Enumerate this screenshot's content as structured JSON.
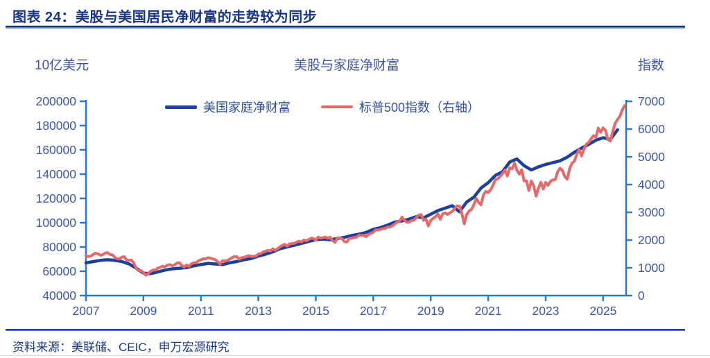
{
  "header": {
    "title": "图表 24：美股与美国居民净财富的走势较为同步"
  },
  "footer": {
    "source": "资料来源：美联储、CEIC，申万宏源研究"
  },
  "colors": {
    "title_navy": "#17348c",
    "tick_text": "#3c55a8",
    "axis_line": "#2e79cc",
    "networth_line": "#203f9b",
    "sp500_line": "#e46a6a"
  },
  "chart_data": {
    "type": "line",
    "title": "美股与家庭净财富",
    "legend_position": "top-center",
    "grid": false,
    "left_axis": {
      "label": "10亿美元",
      "min": 40000,
      "max": 200000,
      "tick_step": 20000,
      "ticks": [
        40000,
        60000,
        80000,
        100000,
        120000,
        140000,
        160000,
        180000,
        200000
      ]
    },
    "right_axis": {
      "label": "指数",
      "min": 0,
      "max": 7000,
      "tick_step": 1000,
      "ticks": [
        0,
        1000,
        2000,
        3000,
        4000,
        5000,
        6000,
        7000
      ]
    },
    "x_axis": {
      "domain_min": 2007,
      "domain_max": 2025.8,
      "ticks": [
        2007,
        2009,
        2011,
        2013,
        2015,
        2017,
        2019,
        2021,
        2023,
        2025
      ]
    },
    "series": [
      {
        "name": "美国家庭净财富",
        "data_name": "networth-line",
        "axis": "left",
        "color": "#203f9b",
        "frequency": "quarterly",
        "x_start": 2007.0,
        "x_step": 0.25,
        "values": [
          67000,
          68000,
          69000,
          69500,
          69000,
          68000,
          66000,
          62500,
          58500,
          58000,
          59500,
          61000,
          62000,
          62500,
          63000,
          64500,
          65500,
          66500,
          66000,
          65500,
          67000,
          68000,
          69500,
          70500,
          72500,
          74000,
          76000,
          78500,
          80000,
          81500,
          83000,
          84500,
          86000,
          86500,
          86000,
          87000,
          88000,
          89500,
          90500,
          92000,
          94500,
          96000,
          98000,
          100500,
          101500,
          103000,
          105000,
          104000,
          107000,
          110000,
          112000,
          114000,
          109000,
          117000,
          121000,
          128500,
          133000,
          139000,
          142000,
          150000,
          152500,
          147000,
          143500,
          146000,
          148000,
          149500,
          151000,
          154000,
          158000,
          161500,
          164500,
          168000,
          170000,
          168500,
          176500
        ]
      },
      {
        "name": "标普500指数（右轴）",
        "data_name": "sp500-line",
        "axis": "right",
        "color": "#e46a6a",
        "frequency": "monthly",
        "x_start": 2007.0,
        "x_step": 0.083333,
        "values": [
          1438,
          1407,
          1421,
          1482,
          1531,
          1503,
          1455,
          1474,
          1527,
          1549,
          1481,
          1468,
          1379,
          1331,
          1323,
          1386,
          1400,
          1280,
          1267,
          1283,
          1166,
          969,
          896,
          903,
          826,
          735,
          798,
          873,
          919,
          919,
          987,
          1021,
          1057,
          1036,
          1096,
          1115,
          1074,
          1104,
          1169,
          1187,
          1089,
          1031,
          1102,
          1049,
          1141,
          1183,
          1181,
          1258,
          1286,
          1327,
          1326,
          1364,
          1345,
          1321,
          1292,
          1219,
          1131,
          1253,
          1247,
          1258,
          1312,
          1366,
          1408,
          1398,
          1310,
          1362,
          1379,
          1407,
          1441,
          1412,
          1416,
          1426,
          1498,
          1515,
          1569,
          1598,
          1631,
          1606,
          1686,
          1633,
          1682,
          1757,
          1806,
          1848,
          1783,
          1859,
          1872,
          1884,
          1924,
          1960,
          1931,
          2003,
          1972,
          2018,
          2068,
          2059,
          1995,
          2105,
          2068,
          2086,
          2107,
          2063,
          2104,
          1972,
          1920,
          2079,
          2080,
          2044,
          1940,
          1932,
          2060,
          2065,
          2097,
          2099,
          2174,
          2171,
          2168,
          2126,
          2199,
          2239,
          2279,
          2364,
          2363,
          2384,
          2412,
          2423,
          2470,
          2472,
          2519,
          2575,
          2648,
          2674,
          2824,
          2714,
          2641,
          2648,
          2705,
          2718,
          2816,
          2902,
          2914,
          2712,
          2760,
          2507,
          2704,
          2784,
          2834,
          2946,
          2752,
          2942,
          2980,
          2926,
          2977,
          3038,
          3141,
          3231,
          3226,
          2954,
          2585,
          2912,
          3044,
          3100,
          3271,
          3500,
          3363,
          3270,
          3622,
          3756,
          3714,
          3811,
          3973,
          4181,
          4204,
          4298,
          4395,
          4523,
          4308,
          4605,
          4567,
          4766,
          4516,
          4374,
          4530,
          4132,
          4132,
          3785,
          4130,
          3955,
          3586,
          3872,
          4080,
          3840,
          4077,
          3970,
          4109,
          4169,
          4180,
          4450,
          4589,
          4508,
          4288,
          4194,
          4568,
          4770,
          4846,
          5096,
          5254,
          5036,
          5278,
          5460,
          5522,
          5648,
          5762,
          5705,
          6032,
          5882,
          6041,
          5955,
          5612,
          5569,
          5912,
          6205,
          6339,
          6460,
          6688,
          6840
        ]
      }
    ]
  }
}
